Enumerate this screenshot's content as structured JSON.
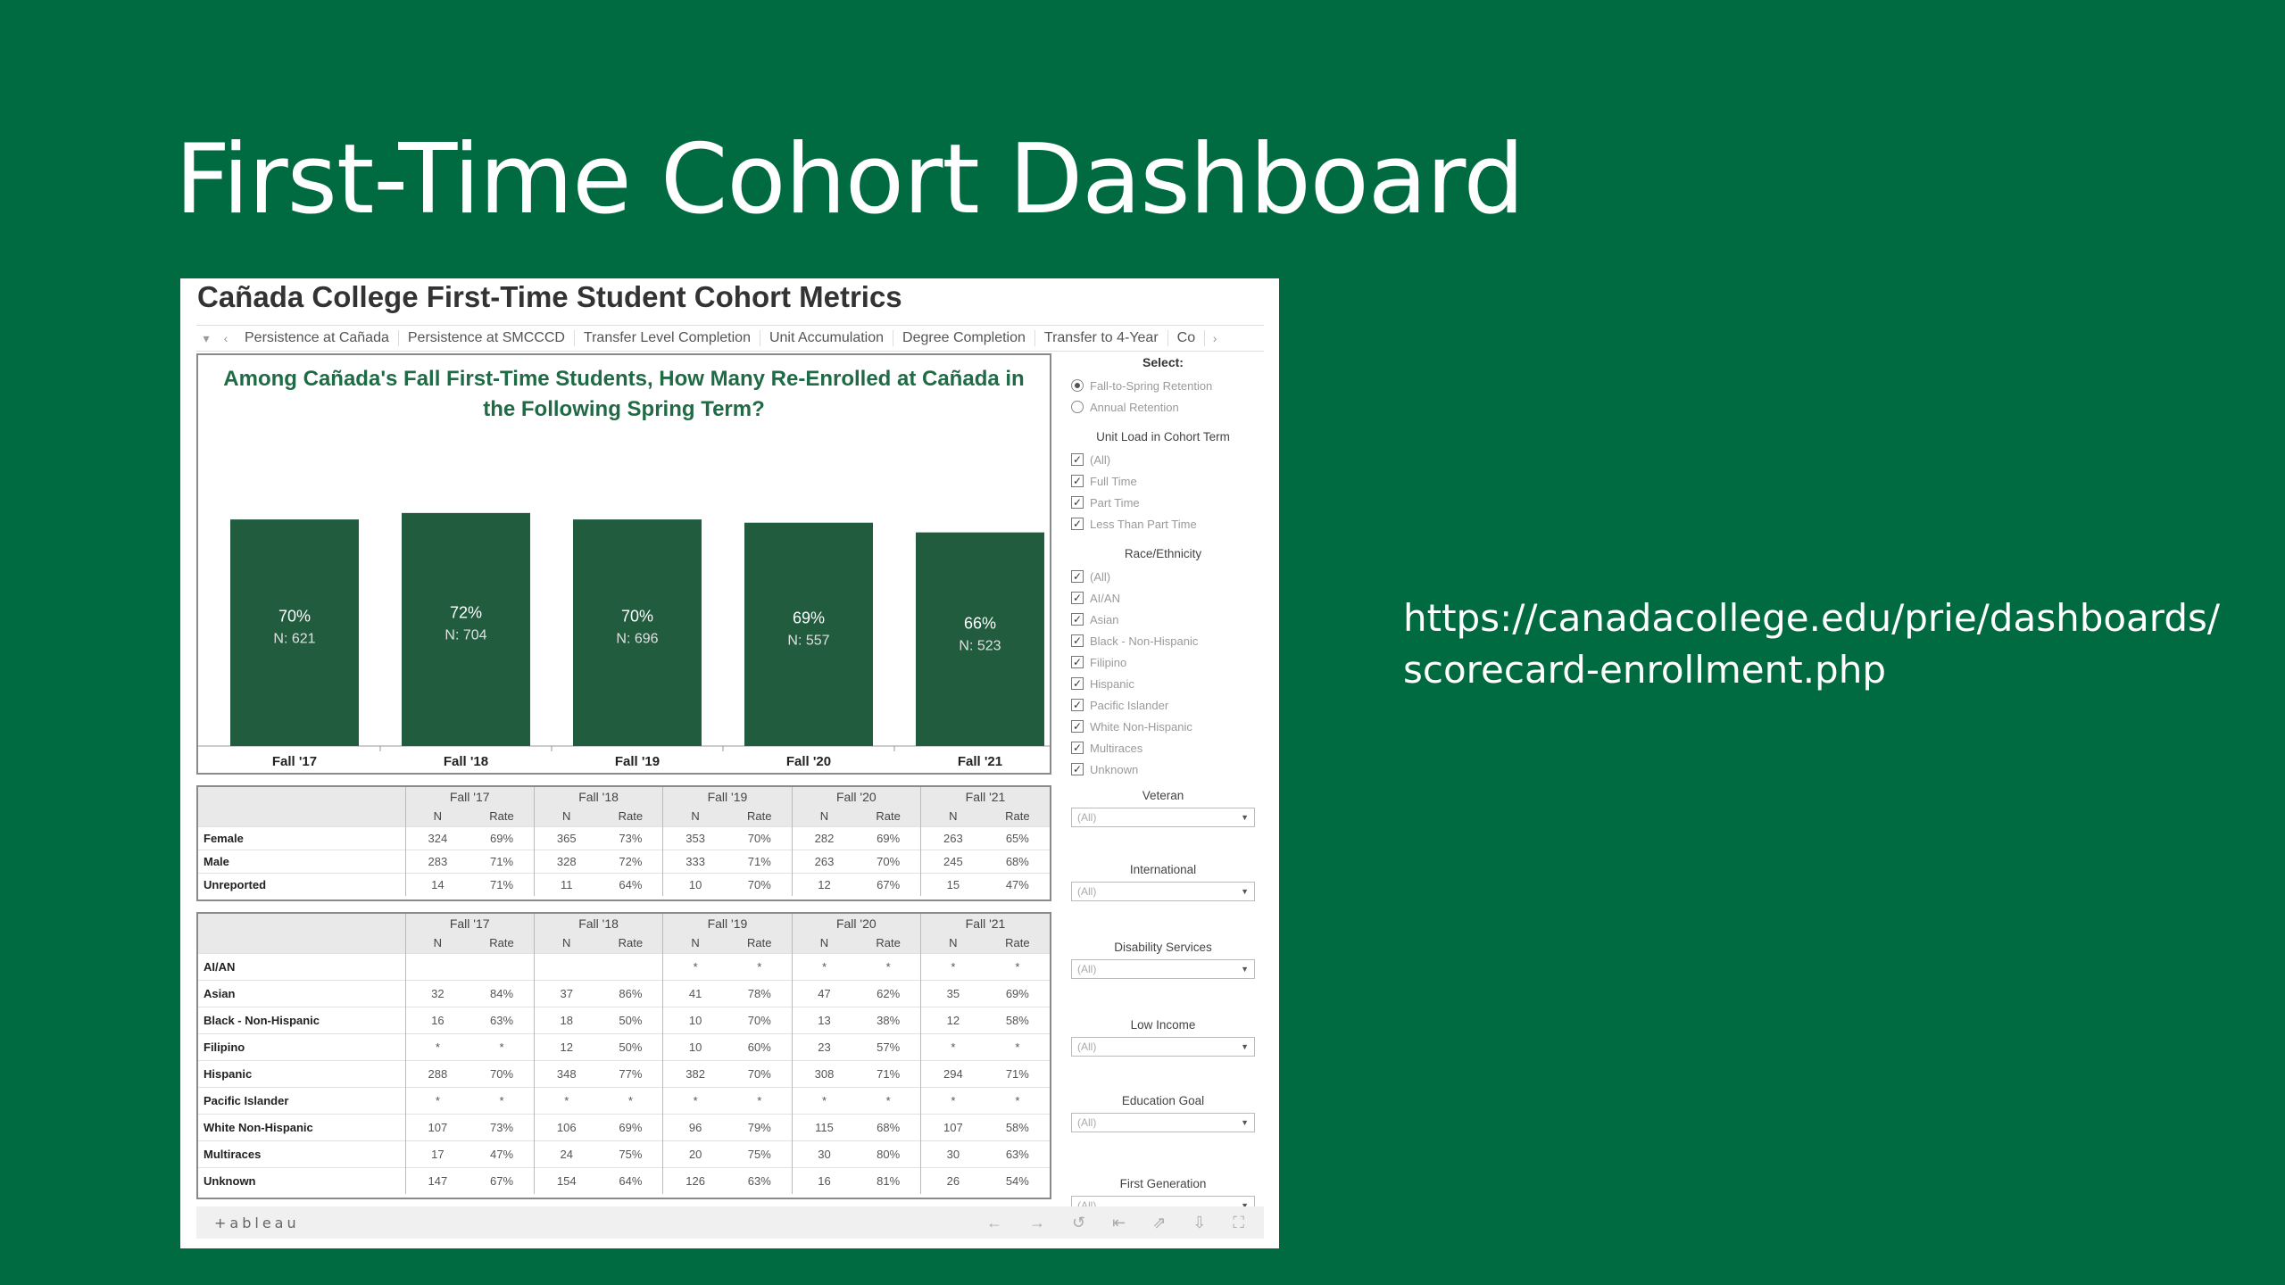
{
  "slide": {
    "title": "First-Time Cohort Dashboard",
    "url_line1": "https://canadacollege.edu/prie/dashboards/",
    "url_line2": "scorecard-enrollment.php"
  },
  "dashboard": {
    "title": "Cañada College First-Time Student Cohort Metrics",
    "tabs": [
      "Persistence at Cañada",
      "Persistence at SMCCCD",
      "Transfer Level Completion",
      "Unit Accumulation",
      "Degree Completion",
      "Transfer to 4-Year",
      "Co"
    ]
  },
  "chart_data": {
    "type": "bar",
    "title": "Among Cañada's Fall First-Time Students, How Many Re-Enrolled at Cañada in the Following Spring Term?",
    "title_line1": "Among Cañada's Fall First-Time Students, How Many Re-Enrolled at Cañada in",
    "title_line2": "the Following Spring Term?",
    "categories": [
      "Fall '17",
      "Fall '18",
      "Fall '19",
      "Fall '20",
      "Fall '21"
    ],
    "values": [
      70,
      72,
      70,
      69,
      66
    ],
    "value_labels": [
      "70%",
      "72%",
      "70%",
      "69%",
      "66%"
    ],
    "n_labels": [
      "N: 621",
      "N: 704",
      "N: 696",
      "N: 557",
      "N: 523"
    ],
    "ylim": [
      0,
      100
    ],
    "bar_color": "#215c3f"
  },
  "gender_table": {
    "years": [
      "Fall '17",
      "Fall '18",
      "Fall '19",
      "Fall '20",
      "Fall '21"
    ],
    "sub": [
      "N",
      "Rate"
    ],
    "rows": [
      {
        "label": "Female",
        "cells": [
          "324",
          "69%",
          "365",
          "73%",
          "353",
          "70%",
          "282",
          "69%",
          "263",
          "65%"
        ]
      },
      {
        "label": "Male",
        "cells": [
          "283",
          "71%",
          "328",
          "72%",
          "333",
          "71%",
          "263",
          "70%",
          "245",
          "68%"
        ]
      },
      {
        "label": "Unreported",
        "cells": [
          "14",
          "71%",
          "11",
          "64%",
          "10",
          "70%",
          "12",
          "67%",
          "15",
          "47%"
        ]
      }
    ]
  },
  "race_table": {
    "years": [
      "Fall '17",
      "Fall '18",
      "Fall '19",
      "Fall '20",
      "Fall '21"
    ],
    "sub": [
      "N",
      "Rate"
    ],
    "rows": [
      {
        "label": "AI/AN",
        "cells": [
          "",
          "",
          "",
          "",
          "*",
          "*",
          "*",
          "*",
          "*",
          "*"
        ]
      },
      {
        "label": "Asian",
        "cells": [
          "32",
          "84%",
          "37",
          "86%",
          "41",
          "78%",
          "47",
          "62%",
          "35",
          "69%"
        ]
      },
      {
        "label": "Black - Non-Hispanic",
        "cells": [
          "16",
          "63%",
          "18",
          "50%",
          "10",
          "70%",
          "13",
          "38%",
          "12",
          "58%"
        ]
      },
      {
        "label": "Filipino",
        "cells": [
          "*",
          "*",
          "12",
          "50%",
          "10",
          "60%",
          "23",
          "57%",
          "*",
          "*"
        ]
      },
      {
        "label": "Hispanic",
        "cells": [
          "288",
          "70%",
          "348",
          "77%",
          "382",
          "70%",
          "308",
          "71%",
          "294",
          "71%"
        ]
      },
      {
        "label": "Pacific Islander",
        "cells": [
          "*",
          "*",
          "*",
          "*",
          "*",
          "*",
          "*",
          "*",
          "*",
          "*"
        ]
      },
      {
        "label": "White Non-Hispanic",
        "cells": [
          "107",
          "73%",
          "106",
          "69%",
          "96",
          "79%",
          "115",
          "68%",
          "107",
          "58%"
        ]
      },
      {
        "label": "Multiraces",
        "cells": [
          "17",
          "47%",
          "24",
          "75%",
          "20",
          "75%",
          "30",
          "80%",
          "30",
          "63%"
        ]
      },
      {
        "label": "Unknown",
        "cells": [
          "147",
          "67%",
          "154",
          "64%",
          "126",
          "63%",
          "16",
          "81%",
          "26",
          "54%"
        ]
      }
    ]
  },
  "sidebar": {
    "select_label": "Select:",
    "radio_options": [
      {
        "label": "Fall-to-Spring Retention",
        "selected": true
      },
      {
        "label": "Annual Retention",
        "selected": false
      }
    ],
    "unit_load": {
      "label": "Unit Load in Cohort Term",
      "options": [
        "(All)",
        "Full Time",
        "Part Time",
        "Less Than Part Time"
      ]
    },
    "race": {
      "label": "Race/Ethnicity",
      "options": [
        "(All)",
        "AI/AN",
        "Asian",
        "Black - Non-Hispanic",
        "Filipino",
        "Hispanic",
        "Pacific Islander",
        "White Non-Hispanic",
        "Multiraces",
        "Unknown"
      ]
    },
    "dropdowns": [
      {
        "label": "Veteran",
        "value": "(All)"
      },
      {
        "label": "International",
        "value": "(All)"
      },
      {
        "label": "Disability Services",
        "value": "(All)"
      },
      {
        "label": "Low Income",
        "value": "(All)"
      },
      {
        "label": "Education Goal",
        "value": "(All)"
      },
      {
        "label": "First Generation",
        "value": "(All)"
      }
    ]
  },
  "footer": {
    "logo": "+ableau",
    "tools": [
      "←",
      "→",
      "↺",
      "⇤",
      "⇗",
      "⇩",
      "⛶"
    ]
  }
}
